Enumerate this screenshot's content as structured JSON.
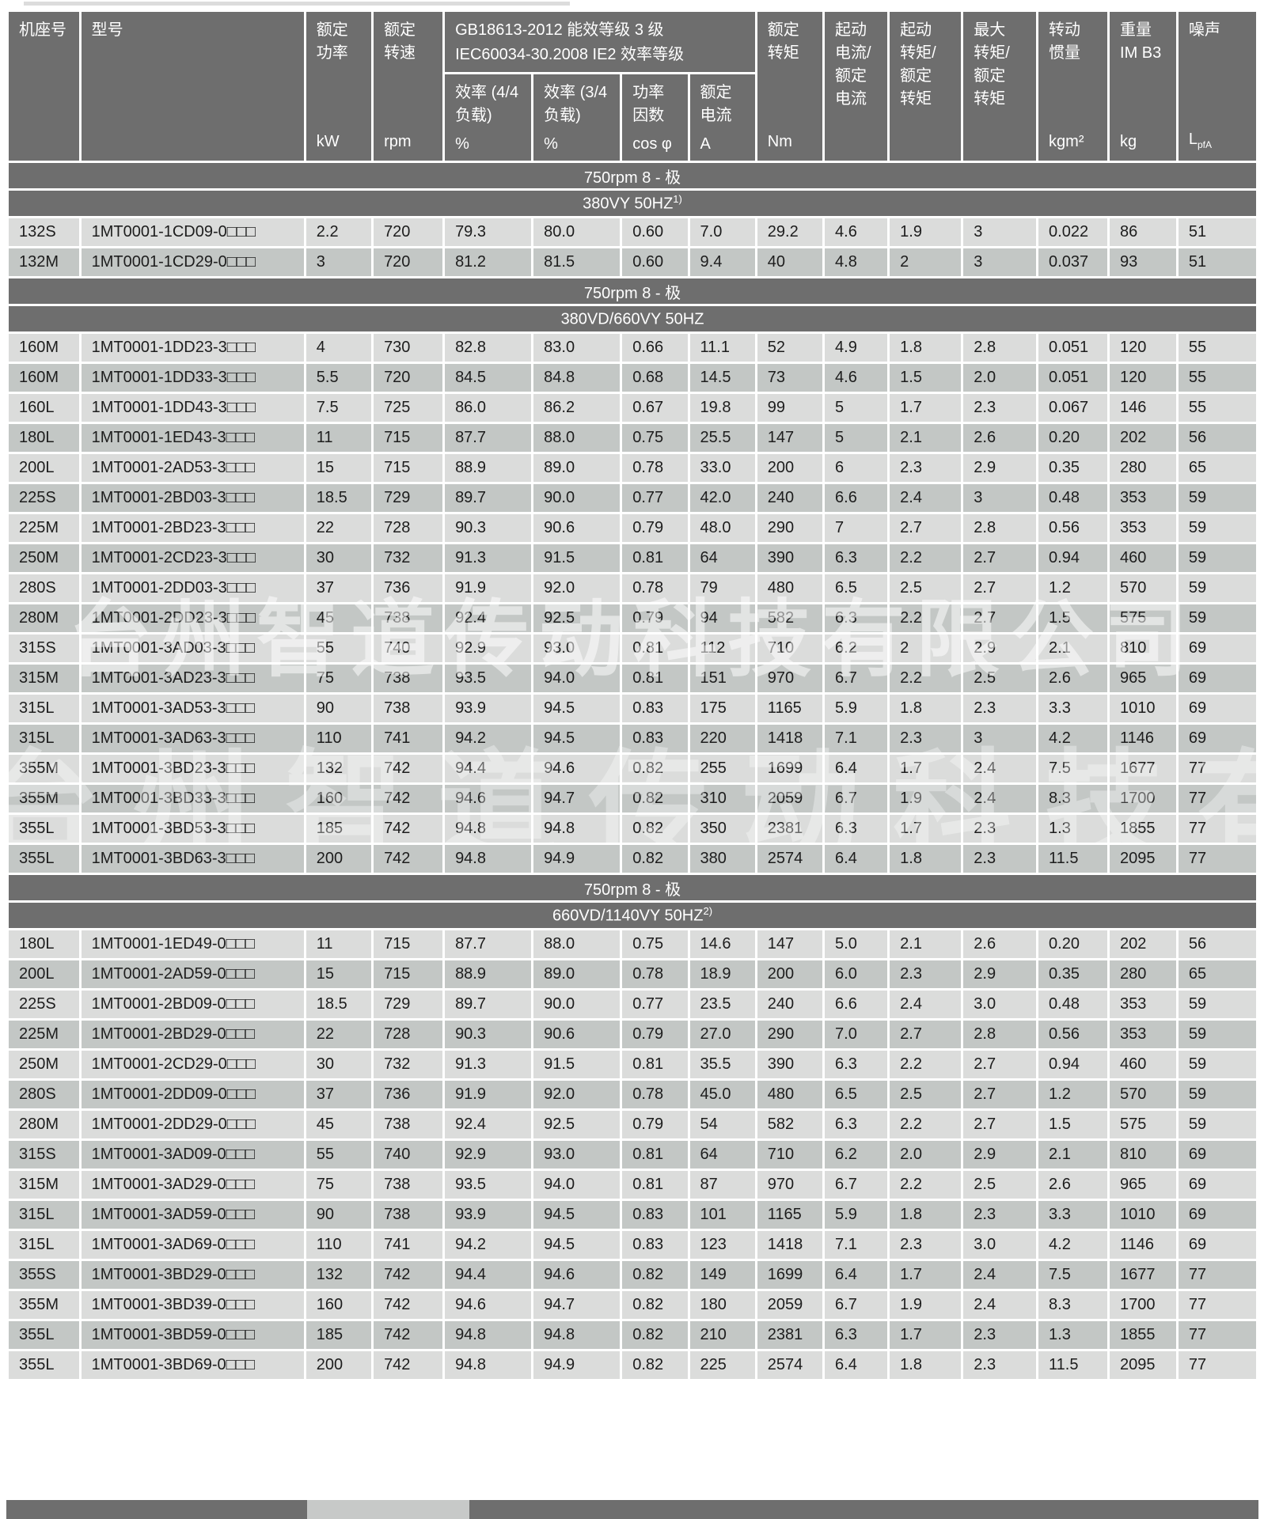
{
  "watermark": "台州智道传动科技有限公司",
  "header": {
    "frame": {
      "title": "机座号",
      "unit": ""
    },
    "model": {
      "title": "型号",
      "unit": ""
    },
    "power": {
      "title": "额定\n功率",
      "unit": "kW"
    },
    "speed": {
      "title": "额定\n转速",
      "unit": "rpm"
    },
    "group": {
      "line1": "GB18613-2012 能效等级 3 级",
      "line2": "IEC60034-30.2008 IE2 效率等级",
      "eff44": {
        "title": "效率 (4/4\n负载)",
        "unit": "%"
      },
      "eff34": {
        "title": "效率 (3/4\n负载)",
        "unit": "%"
      },
      "pf": {
        "title": "功率\n因数",
        "unit": "cos φ"
      },
      "current": {
        "title": "额定\n电流",
        "unit": "A"
      }
    },
    "torque": {
      "title": "额定\n转矩",
      "unit": "Nm"
    },
    "is_in": {
      "title": "起动\n电流/\n额定\n电流",
      "unit": ""
    },
    "ts_tn": {
      "title": "起动\n转矩/\n额定\n转矩",
      "unit": ""
    },
    "tmax_tn": {
      "title": "最大\n转矩/\n额定\n转矩",
      "unit": ""
    },
    "inertia": {
      "title": "转动\n惯量",
      "unit": "kgm²"
    },
    "weight": {
      "title": "重量\nIM B3",
      "unit": "kg"
    },
    "noise": {
      "title": "噪声",
      "unit": "L",
      "unit_sub": "pfA"
    }
  },
  "sections": [
    {
      "pole": "750rpm 8 - 极",
      "voltage": "380VY  50HZ",
      "sup": "1)",
      "rows": [
        [
          "132S",
          "1MT0001-1CD09-0□□□",
          "2.2",
          "720",
          "79.3",
          "80.0",
          "0.60",
          "7.0",
          "29.2",
          "4.6",
          "1.9",
          "3",
          "0.022",
          "86",
          "51"
        ],
        [
          "132M",
          "1MT0001-1CD29-0□□□",
          "3",
          "720",
          "81.2",
          "81.5",
          "0.60",
          "9.4",
          "40",
          "4.8",
          "2",
          "3",
          "0.037",
          "93",
          "51"
        ]
      ]
    },
    {
      "pole": "750rpm 8 - 极",
      "voltage": "380VD/660VY 50HZ",
      "sup": "",
      "rows": [
        [
          "160M",
          "1MT0001-1DD23-3□□□",
          "4",
          "730",
          "82.8",
          "83.0",
          "0.66",
          "11.1",
          "52",
          "4.9",
          "1.8",
          "2.8",
          "0.051",
          "120",
          "55"
        ],
        [
          "160M",
          "1MT0001-1DD33-3□□□",
          "5.5",
          "720",
          "84.5",
          "84.8",
          "0.68",
          "14.5",
          "73",
          "4.6",
          "1.5",
          "2.0",
          "0.051",
          "120",
          "55"
        ],
        [
          "160L",
          "1MT0001-1DD43-3□□□",
          "7.5",
          "725",
          "86.0",
          "86.2",
          "0.67",
          "19.8",
          "99",
          "5",
          "1.7",
          "2.3",
          "0.067",
          "146",
          "55"
        ],
        [
          "180L",
          "1MT0001-1ED43-3□□□",
          "11",
          "715",
          "87.7",
          "88.0",
          "0.75",
          "25.5",
          "147",
          "5",
          "2.1",
          "2.6",
          "0.20",
          "202",
          "56"
        ],
        [
          "200L",
          "1MT0001-2AD53-3□□□",
          "15",
          "715",
          "88.9",
          "89.0",
          "0.78",
          "33.0",
          "200",
          "6",
          "2.3",
          "2.9",
          "0.35",
          "280",
          "65"
        ],
        [
          "225S",
          "1MT0001-2BD03-3□□□",
          "18.5",
          "729",
          "89.7",
          "90.0",
          "0.77",
          "42.0",
          "240",
          "6.6",
          "2.4",
          "3",
          "0.48",
          "353",
          "59"
        ],
        [
          "225M",
          "1MT0001-2BD23-3□□□",
          "22",
          "728",
          "90.3",
          "90.6",
          "0.79",
          "48.0",
          "290",
          "7",
          "2.7",
          "2.8",
          "0.56",
          "353",
          "59"
        ],
        [
          "250M",
          "1MT0001-2CD23-3□□□",
          "30",
          "732",
          "91.3",
          "91.5",
          "0.81",
          "64",
          "390",
          "6.3",
          "2.2",
          "2.7",
          "0.94",
          "460",
          "59"
        ],
        [
          "280S",
          "1MT0001-2DD03-3□□□",
          "37",
          "736",
          "91.9",
          "92.0",
          "0.78",
          "79",
          "480",
          "6.5",
          "2.5",
          "2.7",
          "1.2",
          "570",
          "59"
        ],
        [
          "280M",
          "1MT0001-2DD23-3□□□",
          "45",
          "738",
          "92.4",
          "92.5",
          "0.79",
          "94",
          "582",
          "6.3",
          "2.2",
          "2.7",
          "1.5",
          "575",
          "59"
        ],
        [
          "315S",
          "1MT0001-3AD03-3□□□",
          "55",
          "740",
          "92.9",
          "93.0",
          "0.81",
          "112",
          "710",
          "6.2",
          "2",
          "2.9",
          "2.1",
          "810",
          "69"
        ],
        [
          "315M",
          "1MT0001-3AD23-3□□□",
          "75",
          "738",
          "93.5",
          "94.0",
          "0.81",
          "151",
          "970",
          "6.7",
          "2.2",
          "2.5",
          "2.6",
          "965",
          "69"
        ],
        [
          "315L",
          "1MT0001-3AD53-3□□□",
          "90",
          "738",
          "93.9",
          "94.5",
          "0.83",
          "175",
          "1165",
          "5.9",
          "1.8",
          "2.3",
          "3.3",
          "1010",
          "69"
        ],
        [
          "315L",
          "1MT0001-3AD63-3□□□",
          "110",
          "741",
          "94.2",
          "94.5",
          "0.83",
          "220",
          "1418",
          "7.1",
          "2.3",
          "3",
          "4.2",
          "1146",
          "69"
        ],
        [
          "355M",
          "1MT0001-3BD23-3□□□",
          "132",
          "742",
          "94.4",
          "94.6",
          "0.82",
          "255",
          "1699",
          "6.4",
          "1.7",
          "2.4",
          "7.5",
          "1677",
          "77"
        ],
        [
          "355M",
          "1MT0001-3BD33-3□□□",
          "160",
          "742",
          "94.6",
          "94.7",
          "0.82",
          "310",
          "2059",
          "6.7",
          "1.9",
          "2.4",
          "8.3",
          "1700",
          "77"
        ],
        [
          "355L",
          "1MT0001-3BD53-3□□□",
          "185",
          "742",
          "94.8",
          "94.8",
          "0.82",
          "350",
          "2381",
          "6.3",
          "1.7",
          "2.3",
          "1.3",
          "1855",
          "77"
        ],
        [
          "355L",
          "1MT0001-3BD63-3□□□",
          "200",
          "742",
          "94.8",
          "94.9",
          "0.82",
          "380",
          "2574",
          "6.4",
          "1.8",
          "2.3",
          "11.5",
          "2095",
          "77"
        ]
      ]
    },
    {
      "pole": "750rpm 8 - 极",
      "voltage": "660VD/1140VY 50HZ",
      "sup": "2)",
      "rows": [
        [
          "180L",
          "1MT0001-1ED49-0□□□",
          "11",
          "715",
          "87.7",
          "88.0",
          "0.75",
          "14.6",
          "147",
          "5.0",
          "2.1",
          "2.6",
          "0.20",
          "202",
          "56"
        ],
        [
          "200L",
          "1MT0001-2AD59-0□□□",
          "15",
          "715",
          "88.9",
          "89.0",
          "0.78",
          "18.9",
          "200",
          "6.0",
          "2.3",
          "2.9",
          "0.35",
          "280",
          "65"
        ],
        [
          "225S",
          "1MT0001-2BD09-0□□□",
          "18.5",
          "729",
          "89.7",
          "90.0",
          "0.77",
          "23.5",
          "240",
          "6.6",
          "2.4",
          "3.0",
          "0.48",
          "353",
          "59"
        ],
        [
          "225M",
          "1MT0001-2BD29-0□□□",
          "22",
          "728",
          "90.3",
          "90.6",
          "0.79",
          "27.0",
          "290",
          "7.0",
          "2.7",
          "2.8",
          "0.56",
          "353",
          "59"
        ],
        [
          "250M",
          "1MT0001-2CD29-0□□□",
          "30",
          "732",
          "91.3",
          "91.5",
          "0.81",
          "35.5",
          "390",
          "6.3",
          "2.2",
          "2.7",
          "0.94",
          "460",
          "59"
        ],
        [
          "280S",
          "1MT0001-2DD09-0□□□",
          "37",
          "736",
          "91.9",
          "92.0",
          "0.78",
          "45.0",
          "480",
          "6.5",
          "2.5",
          "2.7",
          "1.2",
          "570",
          "59"
        ],
        [
          "280M",
          "1MT0001-2DD29-0□□□",
          "45",
          "738",
          "92.4",
          "92.5",
          "0.79",
          "54",
          "582",
          "6.3",
          "2.2",
          "2.7",
          "1.5",
          "575",
          "59"
        ],
        [
          "315S",
          "1MT0001-3AD09-0□□□",
          "55",
          "740",
          "92.9",
          "93.0",
          "0.81",
          "64",
          "710",
          "6.2",
          "2.0",
          "2.9",
          "2.1",
          "810",
          "69"
        ],
        [
          "315M",
          "1MT0001-3AD29-0□□□",
          "75",
          "738",
          "93.5",
          "94.0",
          "0.81",
          "87",
          "970",
          "6.7",
          "2.2",
          "2.5",
          "2.6",
          "965",
          "69"
        ],
        [
          "315L",
          "1MT0001-3AD59-0□□□",
          "90",
          "738",
          "93.9",
          "94.5",
          "0.83",
          "101",
          "1165",
          "5.9",
          "1.8",
          "2.3",
          "3.3",
          "1010",
          "69"
        ],
        [
          "315L",
          "1MT0001-3AD69-0□□□",
          "110",
          "741",
          "94.2",
          "94.5",
          "0.83",
          "123",
          "1418",
          "7.1",
          "2.3",
          "3.0",
          "4.2",
          "1146",
          "69"
        ],
        [
          "355S",
          "1MT0001-3BD29-0□□□",
          "132",
          "742",
          "94.4",
          "94.6",
          "0.82",
          "149",
          "1699",
          "6.4",
          "1.7",
          "2.4",
          "7.5",
          "1677",
          "77"
        ],
        [
          "355M",
          "1MT0001-3BD39-0□□□",
          "160",
          "742",
          "94.6",
          "94.7",
          "0.82",
          "180",
          "2059",
          "6.7",
          "1.9",
          "2.4",
          "8.3",
          "1700",
          "77"
        ],
        [
          "355L",
          "1MT0001-3BD59-0□□□",
          "185",
          "742",
          "94.8",
          "94.8",
          "0.82",
          "210",
          "2381",
          "6.3",
          "1.7",
          "2.3",
          "1.3",
          "1855",
          "77"
        ],
        [
          "355L",
          "1MT0001-3BD69-0□□□",
          "200",
          "742",
          "94.8",
          "94.9",
          "0.82",
          "225",
          "2574",
          "6.4",
          "1.8",
          "2.3",
          "11.5",
          "2095",
          "77"
        ]
      ]
    }
  ]
}
